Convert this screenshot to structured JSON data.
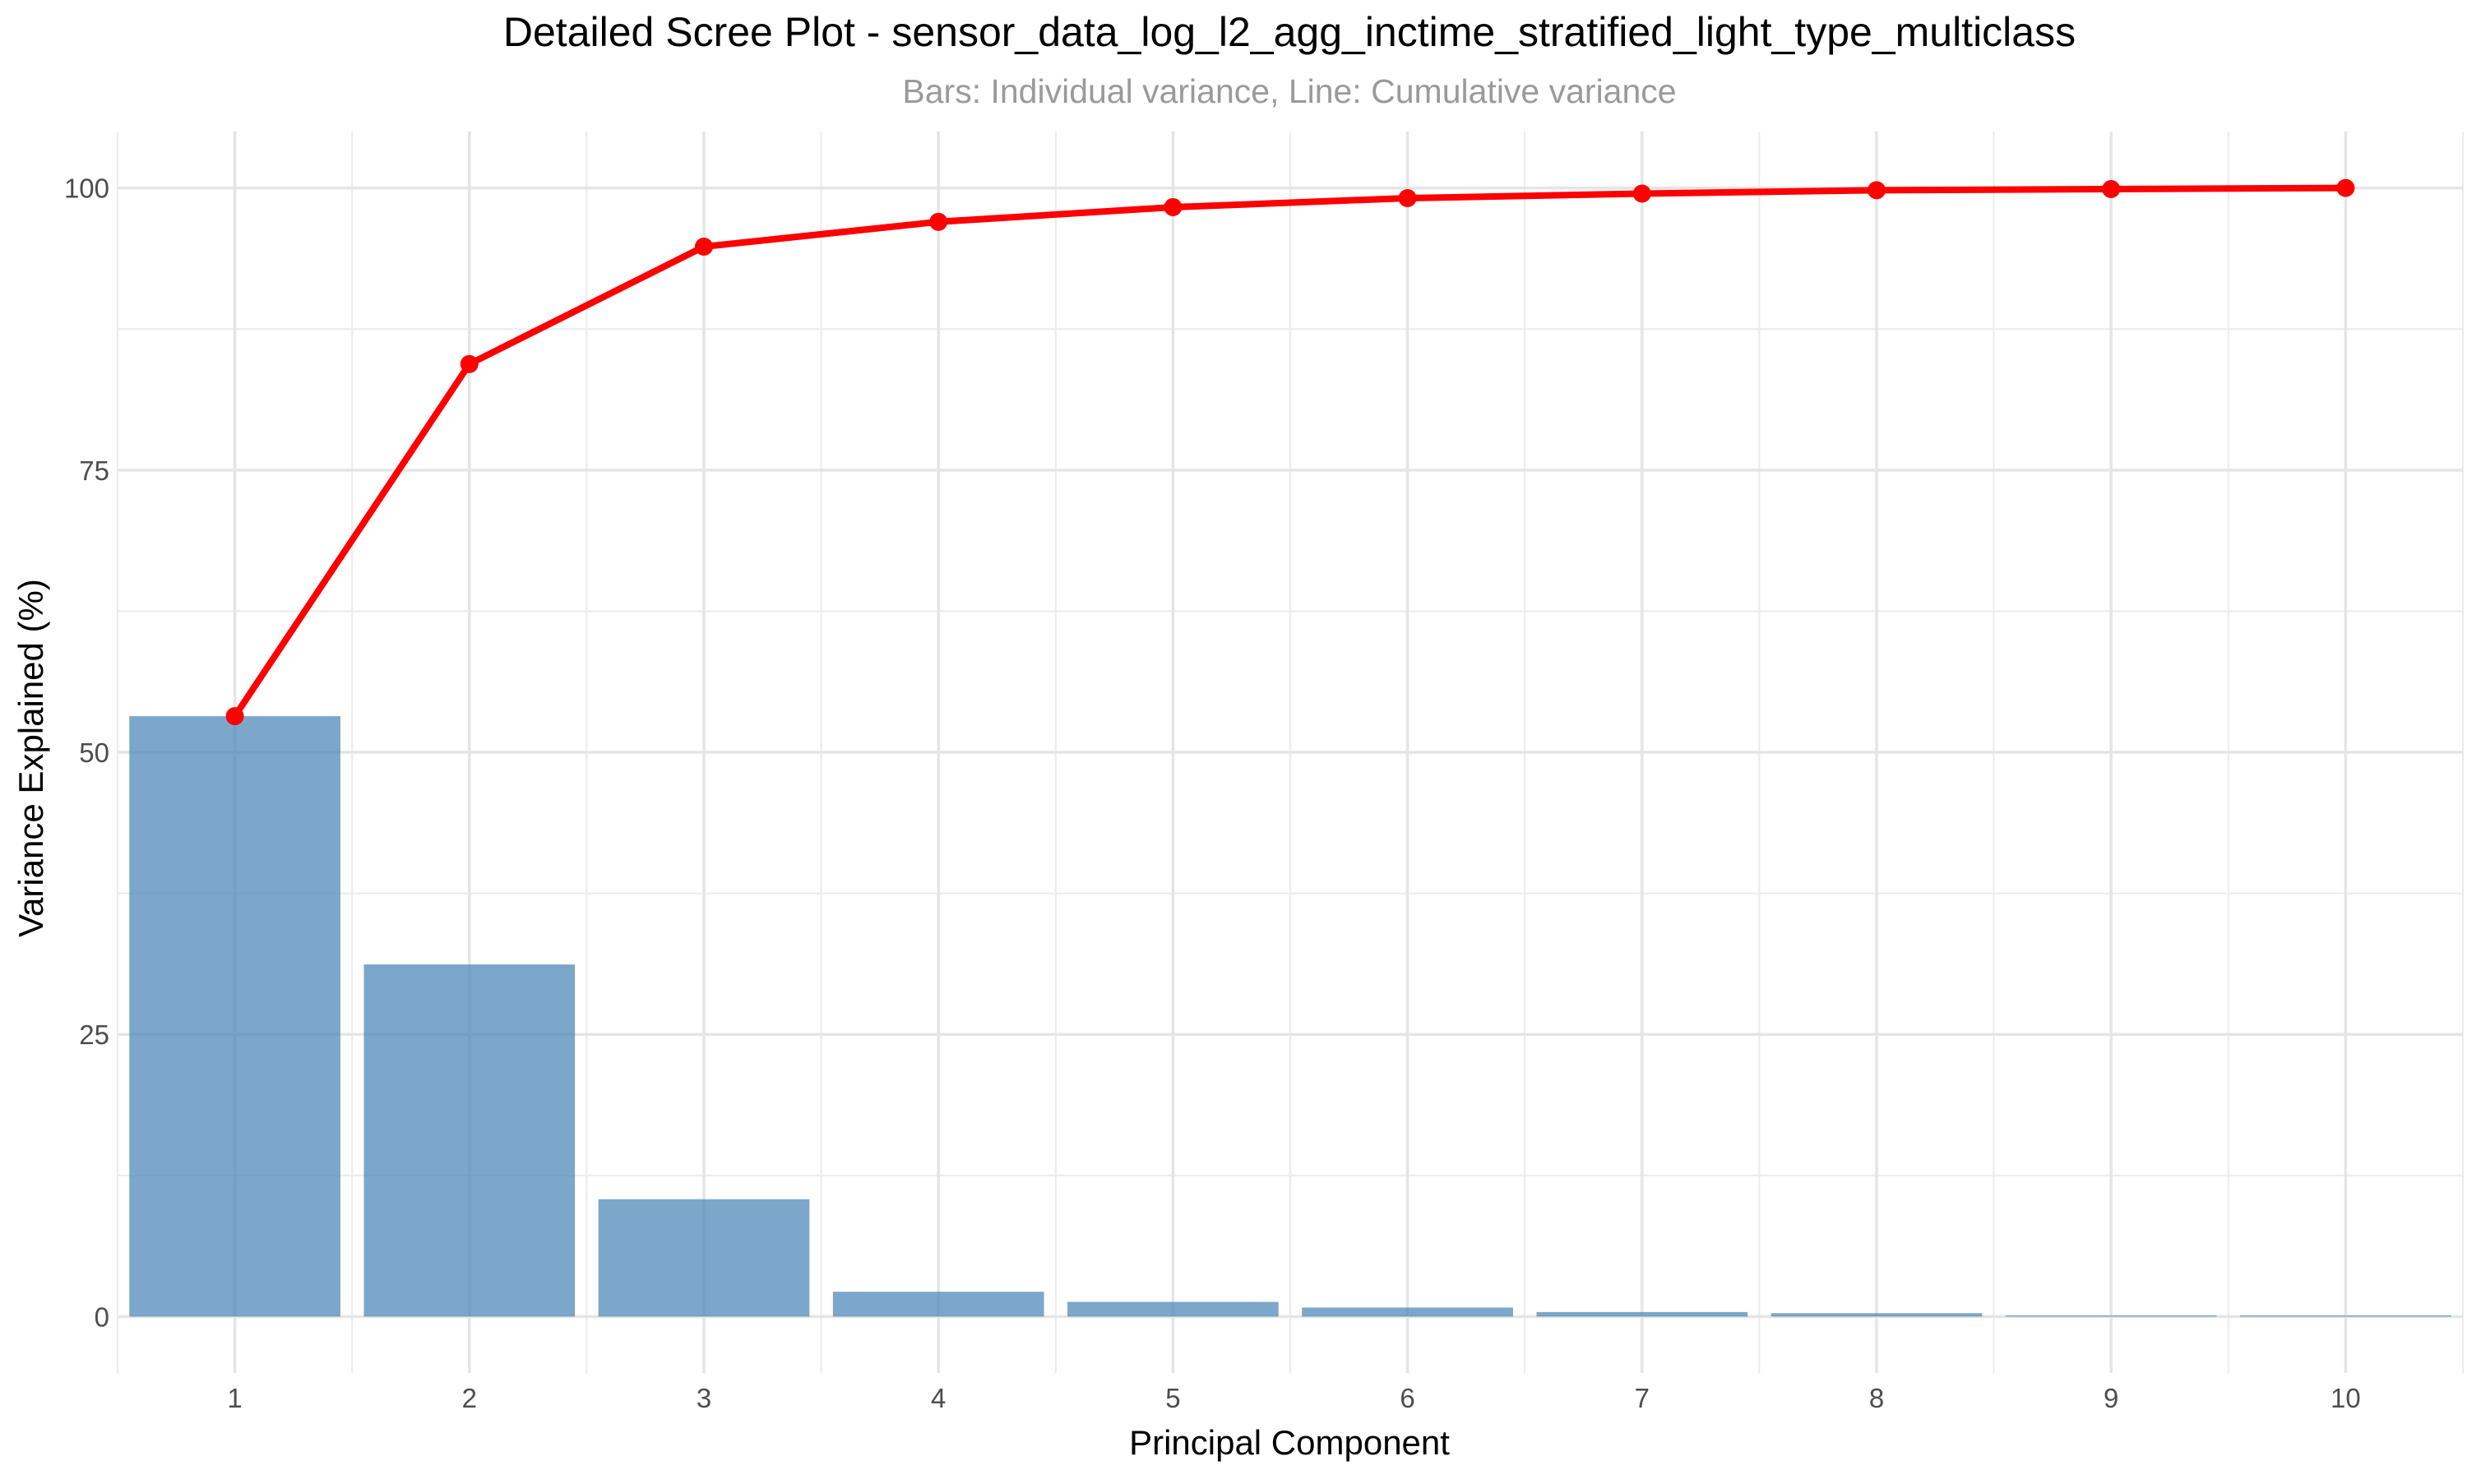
{
  "chart_data": {
    "type": "bar",
    "title": "Detailed Scree Plot - sensor_data_log_l2_agg_inctime_stratified_light_type_multiclass",
    "subtitle": "Bars: Individual variance, Line: Cumulative variance",
    "xlabel": "Principal Component",
    "ylabel": "Variance Explained (%)",
    "categories": [
      "1",
      "2",
      "3",
      "4",
      "5",
      "6",
      "7",
      "8",
      "9",
      "10"
    ],
    "series": [
      {
        "kind": "bar",
        "values": [
          53.2,
          31.2,
          10.4,
          2.2,
          1.3,
          0.8,
          0.4,
          0.3,
          0.1,
          0.1
        ],
        "color": "#4682B4"
      },
      {
        "kind": "line",
        "values": [
          53.2,
          84.4,
          94.8,
          97.0,
          98.3,
          99.1,
          99.5,
          99.8,
          99.9,
          100.0
        ],
        "color": "#FF0000"
      }
    ],
    "ylim": [
      -5,
      105
    ],
    "yticks": [
      0,
      25,
      50,
      75,
      100
    ],
    "grid": true,
    "legend": "none"
  }
}
